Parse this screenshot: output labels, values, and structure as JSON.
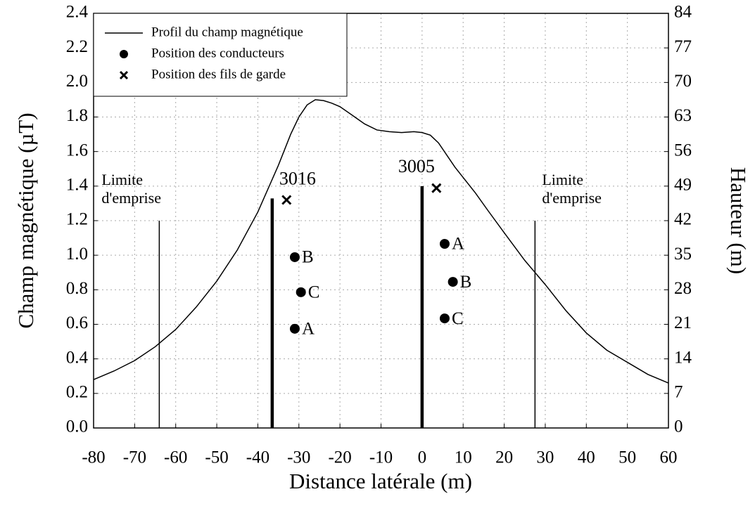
{
  "chart_data": {
    "type": "line",
    "xlabel": "Distance latérale (m)",
    "ylabel": "Champ magnétique (µT)",
    "y2label": "Hauteur (m)",
    "xlim": [
      -80,
      60
    ],
    "xticks": [
      -80,
      -70,
      -60,
      -50,
      -40,
      -30,
      -20,
      -10,
      0,
      10,
      20,
      30,
      40,
      50,
      60
    ],
    "ylim": [
      0,
      2.4
    ],
    "yticks": [
      {
        "value": 0,
        "label": "0.0"
      },
      {
        "value": 0.2,
        "label": "0.2"
      },
      {
        "value": 0.4,
        "label": "0.4"
      },
      {
        "value": 0.6,
        "label": "0.6"
      },
      {
        "value": 0.8,
        "label": "0.8"
      },
      {
        "value": 1.0,
        "label": "1.0"
      },
      {
        "value": 1.2,
        "label": "1.2"
      },
      {
        "value": 1.4,
        "label": "1.4"
      },
      {
        "value": 1.6,
        "label": "1.6"
      },
      {
        "value": 1.8,
        "label": "1.8"
      },
      {
        "value": 2.0,
        "label": "2.0"
      },
      {
        "value": 2.2,
        "label": "2.2"
      },
      {
        "value": 2.4,
        "label": "2.4"
      }
    ],
    "y2lim": [
      0,
      84
    ],
    "y2ticks": [
      0,
      7,
      14,
      21,
      28,
      35,
      42,
      49,
      56,
      63,
      70,
      77,
      84
    ],
    "grid": true,
    "legend": "upper left",
    "series": [
      {
        "name": "Profil du champ magnétique",
        "type": "line",
        "color": "#000000",
        "x": [
          -80,
          -75,
          -70,
          -65,
          -60,
          -55,
          -50,
          -45,
          -40,
          -35,
          -32,
          -30,
          -28,
          -26,
          -24,
          -22,
          -20,
          -17,
          -14,
          -11,
          -8,
          -5,
          -2,
          0,
          2,
          4,
          6,
          8,
          10,
          13,
          16,
          20,
          25,
          30,
          35,
          40,
          45,
          50,
          55,
          60
        ],
        "values": [
          0.28,
          0.33,
          0.39,
          0.47,
          0.57,
          0.7,
          0.85,
          1.03,
          1.25,
          1.52,
          1.7,
          1.8,
          1.87,
          1.9,
          1.895,
          1.88,
          1.86,
          1.81,
          1.76,
          1.725,
          1.715,
          1.71,
          1.715,
          1.71,
          1.695,
          1.65,
          1.58,
          1.51,
          1.45,
          1.36,
          1.26,
          1.13,
          0.97,
          0.83,
          0.68,
          0.55,
          0.45,
          0.38,
          0.31,
          0.26
        ]
      },
      {
        "name": "Position des conducteurs",
        "type": "dot",
        "axis": "y2",
        "color": "#000000",
        "x": [
          -31,
          -29.5,
          -31,
          5.5,
          7.5,
          5.5
        ],
        "values": [
          34.6,
          27.5,
          20.1,
          37.3,
          29.6,
          22.2
        ],
        "labels": [
          "B",
          "C",
          "A",
          "A",
          "B",
          "C"
        ]
      },
      {
        "name": "Position des fils de garde",
        "type": "cross",
        "axis": "y2",
        "color": "#000000",
        "x": [
          -33,
          3.5
        ],
        "values": [
          46.2,
          48.6
        ]
      }
    ],
    "towers": [
      {
        "label": "3016",
        "x": -36.5,
        "height": 46.5
      },
      {
        "label": "3005",
        "x": 0,
        "height": 49
      }
    ],
    "limits": [
      {
        "label": [
          "Limite",
          "d'emprise"
        ],
        "x": -64,
        "height": 42
      },
      {
        "label": [
          "Limite",
          "d'emprise"
        ],
        "x": 27.5,
        "height": 42
      }
    ]
  }
}
